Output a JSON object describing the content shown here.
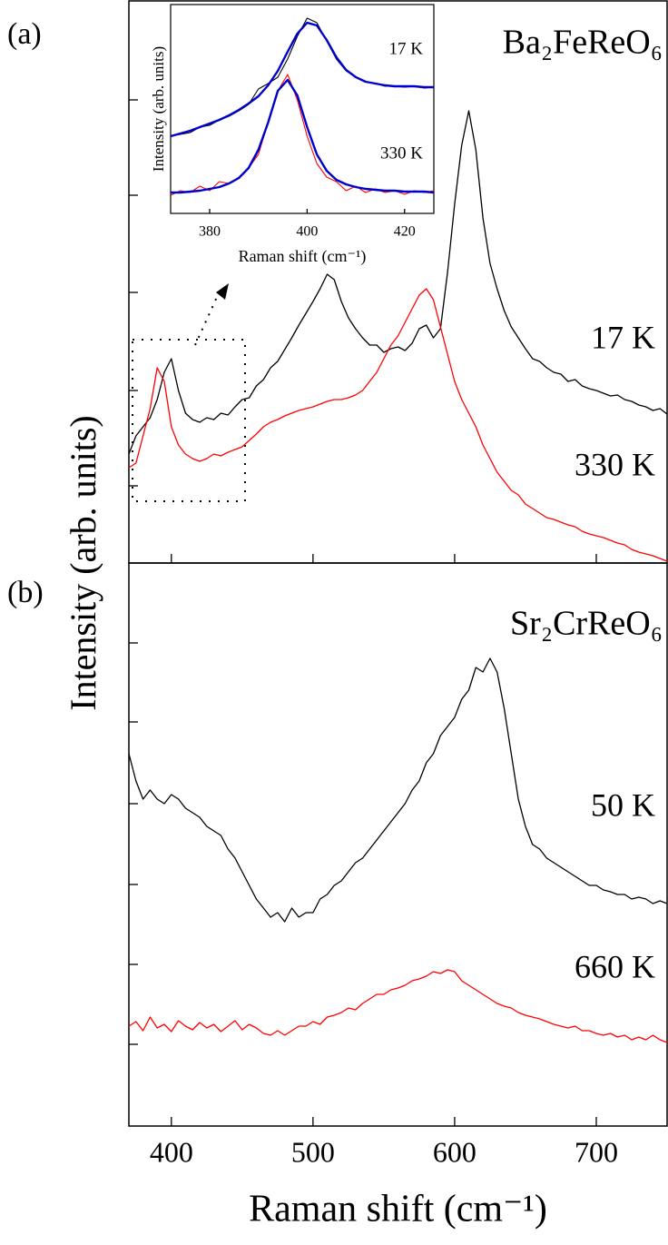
{
  "chart_data": [
    {
      "type": "line",
      "panel_label": "(a)",
      "title": "Ba₂FeReO₆",
      "ylabel": "Intensity (arb. units)",
      "x": [
        370,
        375,
        380,
        385,
        390,
        395,
        400,
        405,
        410,
        415,
        420,
        425,
        430,
        435,
        440,
        445,
        450,
        455,
        460,
        465,
        470,
        475,
        480,
        485,
        490,
        495,
        500,
        505,
        510,
        515,
        520,
        525,
        530,
        535,
        540,
        545,
        550,
        555,
        560,
        565,
        570,
        575,
        580,
        585,
        590,
        595,
        600,
        605,
        610,
        615,
        620,
        625,
        630,
        635,
        640,
        645,
        650,
        655,
        660,
        665,
        670,
        675,
        680,
        685,
        690,
        695,
        700,
        705,
        710,
        715,
        720,
        725,
        730,
        735,
        740,
        745,
        750
      ],
      "xlim": [
        370,
        750
      ],
      "xticks": [
        400,
        500,
        600,
        700
      ],
      "ylim": [
        0,
        620
      ],
      "yticks": [
        85,
        190,
        298,
        405,
        510
      ],
      "series": [
        {
          "name": "17 K",
          "color": "#000000",
          "values": [
            120,
            140,
            150,
            160,
            180,
            210,
            225,
            190,
            165,
            158,
            155,
            160,
            158,
            165,
            163,
            172,
            180,
            182,
            195,
            202,
            215,
            222,
            235,
            248,
            262,
            275,
            288,
            302,
            318,
            312,
            288,
            270,
            258,
            248,
            240,
            240,
            232,
            236,
            238,
            234,
            242,
            258,
            262,
            248,
            258,
            320,
            395,
            460,
            498,
            455,
            380,
            330,
            302,
            278,
            260,
            248,
            236,
            225,
            222,
            215,
            210,
            208,
            200,
            202,
            195,
            192,
            190,
            187,
            184,
            185,
            180,
            178,
            174,
            172,
            168,
            170,
            164
          ]
        },
        {
          "name": "330 K",
          "color": "#ff0000",
          "values": [
            105,
            110,
            140,
            170,
            215,
            200,
            150,
            130,
            120,
            115,
            112,
            115,
            120,
            118,
            122,
            125,
            128,
            135,
            142,
            150,
            155,
            158,
            162,
            165,
            168,
            170,
            172,
            175,
            178,
            180,
            180,
            182,
            185,
            190,
            200,
            210,
            225,
            240,
            250,
            265,
            280,
            295,
            302,
            290,
            260,
            230,
            200,
            180,
            165,
            150,
            130,
            115,
            100,
            90,
            80,
            75,
            65,
            60,
            55,
            50,
            48,
            45,
            42,
            40,
            35,
            32,
            30,
            28,
            25,
            22,
            20,
            15,
            12,
            10,
            8,
            5,
            2
          ]
        }
      ]
    },
    {
      "type": "line",
      "xlabel": "Raman shift (cm⁻¹)",
      "ylabel": "Intensity (arb. units)",
      "x": [
        372,
        374,
        376,
        378,
        380,
        382,
        384,
        386,
        388,
        390,
        392,
        394,
        396,
        398,
        400,
        402,
        404,
        406,
        408,
        410,
        412,
        414,
        416,
        418,
        420,
        422,
        424,
        426
      ],
      "xlim": [
        372,
        426
      ],
      "xticks": [
        380,
        400,
        420
      ],
      "ylim": [
        0,
        230
      ],
      "series": [
        {
          "name": "17 K",
          "color": "#000000",
          "values": [
            85,
            87,
            89,
            95,
            97,
            103,
            107,
            113,
            120,
            137,
            143,
            150,
            170,
            195,
            215,
            210,
            190,
            170,
            157,
            150,
            145,
            143,
            140,
            140,
            139,
            140,
            138,
            139
          ]
        },
        {
          "color": "#0000cc",
          "values": [
            85,
            88,
            91,
            95,
            99,
            103,
            108,
            114,
            121,
            129,
            141,
            157,
            178,
            198,
            210,
            207,
            191,
            172,
            158,
            150,
            145,
            143,
            141,
            140,
            140,
            140,
            139,
            139
          ]
        },
        {
          "name": "330 K",
          "color": "#ff0000",
          "values": [
            20,
            25,
            23,
            30,
            25,
            35,
            33,
            40,
            50,
            65,
            100,
            135,
            153,
            125,
            85,
            55,
            40,
            35,
            25,
            30,
            23,
            27,
            23,
            25,
            21,
            25,
            23,
            25
          ]
        },
        {
          "color": "#0000cc",
          "values": [
            23,
            23,
            24,
            25,
            27,
            29,
            33,
            39,
            50,
            70,
            100,
            135,
            147,
            130,
            95,
            65,
            47,
            37,
            32,
            29,
            27,
            26,
            25,
            25,
            24,
            24,
            24,
            23
          ]
        }
      ]
    },
    {
      "type": "line",
      "panel_label": "(b)",
      "title": "Sr₂CrReO₆",
      "xlabel": "Raman shift (cm⁻¹)",
      "x": [
        370,
        375,
        380,
        385,
        390,
        395,
        400,
        405,
        410,
        415,
        420,
        425,
        430,
        435,
        440,
        445,
        450,
        455,
        460,
        465,
        470,
        475,
        480,
        485,
        490,
        495,
        500,
        505,
        510,
        515,
        520,
        525,
        530,
        535,
        540,
        545,
        550,
        555,
        560,
        565,
        570,
        575,
        580,
        585,
        590,
        595,
        600,
        605,
        610,
        615,
        620,
        625,
        630,
        635,
        640,
        645,
        650,
        655,
        660,
        665,
        670,
        675,
        680,
        685,
        690,
        695,
        700,
        705,
        710,
        715,
        720,
        725,
        730,
        735,
        740,
        745,
        750
      ],
      "xlim": [
        370,
        750
      ],
      "xticks": [
        400,
        500,
        600,
        700
      ],
      "ylim": [
        0,
        620
      ],
      "yticks": [
        90,
        178,
        266,
        355,
        445,
        532
      ],
      "series": [
        {
          "name": "50 K",
          "color": "#000000",
          "values": [
            410,
            380,
            360,
            370,
            360,
            355,
            365,
            360,
            350,
            345,
            340,
            330,
            325,
            320,
            305,
            295,
            280,
            265,
            250,
            240,
            230,
            235,
            225,
            240,
            230,
            235,
            235,
            250,
            255,
            265,
            270,
            280,
            290,
            295,
            305,
            315,
            325,
            335,
            345,
            355,
            370,
            380,
            400,
            410,
            430,
            440,
            450,
            470,
            480,
            505,
            500,
            515,
            500,
            460,
            410,
            360,
            330,
            310,
            305,
            295,
            290,
            285,
            280,
            275,
            270,
            265,
            265,
            260,
            258,
            255,
            255,
            250,
            252,
            250,
            245,
            248,
            245
          ]
        },
        {
          "name": "660 K",
          "color": "#ff0000",
          "values": [
            110,
            115,
            105,
            120,
            108,
            112,
            104,
            116,
            110,
            106,
            114,
            108,
            112,
            104,
            110,
            116,
            106,
            112,
            108,
            102,
            100,
            105,
            100,
            105,
            110,
            110,
            115,
            112,
            120,
            122,
            125,
            130,
            128,
            135,
            140,
            145,
            145,
            150,
            152,
            155,
            160,
            162,
            165,
            170,
            168,
            172,
            170,
            160,
            155,
            150,
            145,
            140,
            135,
            132,
            130,
            125,
            122,
            120,
            118,
            115,
            112,
            110,
            108,
            110,
            105,
            105,
            102,
            100,
            102,
            98,
            100,
            95,
            98,
            95,
            100,
            95,
            92
          ]
        }
      ]
    }
  ]
}
